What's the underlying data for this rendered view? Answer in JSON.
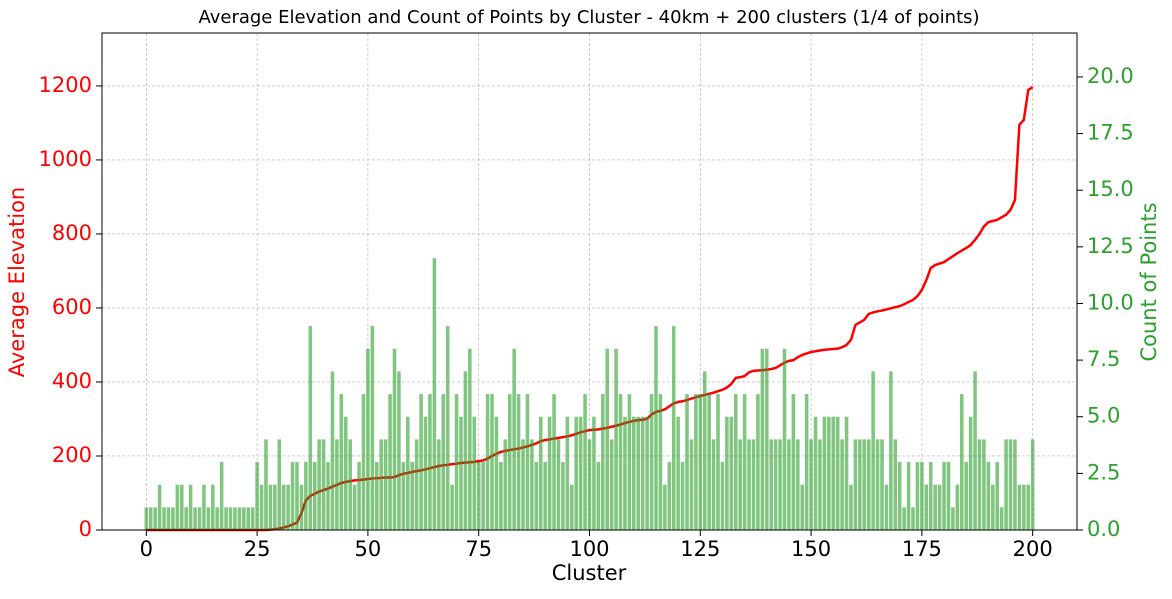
{
  "chart_data": {
    "type": "combo",
    "title": "Average Elevation and Count of Points by Cluster - 40km + 200 clusters (1/4 of points)",
    "xlabel": "Cluster",
    "ylabel": "Average Elevation",
    "y2label": "Count of Points",
    "ylabel_color": "#ff0000",
    "y2label_color": "#2ca02c",
    "grid": true,
    "xlim": [
      -10,
      210
    ],
    "xticks": [
      0,
      25,
      50,
      75,
      100,
      125,
      150,
      175,
      200
    ],
    "ylim": [
      0,
      1343
    ],
    "yticks": [
      0,
      200,
      400,
      600,
      800,
      1000,
      1200
    ],
    "y2lim": [
      0,
      21.94
    ],
    "y2ticks": [
      {
        "value": 0,
        "label": "0.0"
      },
      {
        "value": 2.5,
        "label": "2.5"
      },
      {
        "value": 5,
        "label": "5.0"
      },
      {
        "value": 7.5,
        "label": "7.5"
      },
      {
        "value": 10,
        "label": "10.0"
      },
      {
        "value": 12.5,
        "label": "12.5"
      },
      {
        "value": 15,
        "label": "15.0"
      },
      {
        "value": 17.5,
        "label": "17.5"
      },
      {
        "value": 20,
        "label": "20.0"
      }
    ],
    "x": [
      0,
      1,
      2,
      3,
      4,
      5,
      6,
      7,
      8,
      9,
      10,
      11,
      12,
      13,
      14,
      15,
      16,
      17,
      18,
      19,
      20,
      21,
      22,
      23,
      24,
      25,
      26,
      27,
      28,
      29,
      30,
      31,
      32,
      33,
      34,
      35,
      36,
      37,
      38,
      39,
      40,
      41,
      42,
      43,
      44,
      45,
      46,
      47,
      48,
      49,
      50,
      51,
      52,
      53,
      54,
      55,
      56,
      57,
      58,
      59,
      60,
      61,
      62,
      63,
      64,
      65,
      66,
      67,
      68,
      69,
      70,
      71,
      72,
      73,
      74,
      75,
      76,
      77,
      78,
      79,
      80,
      81,
      82,
      83,
      84,
      85,
      86,
      87,
      88,
      89,
      90,
      91,
      92,
      93,
      94,
      95,
      96,
      97,
      98,
      99,
      100,
      101,
      102,
      103,
      104,
      105,
      106,
      107,
      108,
      109,
      110,
      111,
      112,
      113,
      114,
      115,
      116,
      117,
      118,
      119,
      120,
      121,
      122,
      123,
      124,
      125,
      126,
      127,
      128,
      129,
      130,
      131,
      132,
      133,
      134,
      135,
      136,
      137,
      138,
      139,
      140,
      141,
      142,
      143,
      144,
      145,
      146,
      147,
      148,
      149,
      150,
      151,
      152,
      153,
      154,
      155,
      156,
      157,
      158,
      159,
      160,
      161,
      162,
      163,
      164,
      165,
      166,
      167,
      168,
      169,
      170,
      171,
      172,
      173,
      174,
      175,
      176,
      177,
      178,
      179,
      180,
      181,
      182,
      183,
      184,
      185,
      186,
      187,
      188,
      189,
      190,
      191,
      192,
      193,
      194,
      195,
      196,
      197,
      198,
      199,
      200
    ],
    "series": [
      {
        "type": "line",
        "color": "#ff0000",
        "values": [
          0,
          0,
          0,
          0,
          0,
          0,
          0,
          0,
          0,
          0,
          0,
          0,
          0,
          0,
          0,
          0,
          0,
          0,
          0,
          0,
          0,
          0,
          0,
          0,
          0,
          0,
          0,
          0,
          1,
          2,
          4,
          7,
          10,
          15,
          20,
          45,
          80,
          92,
          98,
          104,
          108,
          112,
          117,
          122,
          127,
          130,
          132,
          134,
          135,
          136,
          138,
          139,
          140,
          141,
          142,
          142,
          143,
          148,
          152,
          154,
          157,
          159,
          161,
          164,
          167,
          170,
          173,
          175,
          176,
          178,
          179,
          181,
          182,
          183,
          184,
          186,
          188,
          193,
          200,
          206,
          211,
          214,
          216,
          218,
          220,
          223,
          226,
          230,
          234,
          240,
          243,
          245,
          247,
          249,
          251,
          253,
          256,
          260,
          264,
          267,
          270,
          271,
          272,
          274,
          276,
          279,
          282,
          285,
          289,
          292,
          295,
          297,
          298,
          301,
          312,
          319,
          322,
          326,
          334,
          342,
          346,
          348,
          351,
          355,
          359,
          362,
          365,
          368,
          371,
          375,
          379,
          385,
          395,
          411,
          413,
          416,
          426,
          430,
          431,
          432,
          433,
          435,
          438,
          445,
          452,
          457,
          459,
          467,
          473,
          477,
          481,
          483,
          485,
          487,
          488,
          489,
          490,
          494,
          500,
          514,
          554,
          561,
          568,
          584,
          588,
          591,
          593,
          596,
          599,
          602,
          605,
          610,
          616,
          622,
          632,
          649,
          675,
          708,
          716,
          720,
          724,
          732,
          740,
          748,
          755,
          762,
          770,
          784,
          800,
          820,
          832,
          835,
          838,
          845,
          852,
          865,
          892,
          1095,
          1108,
          1189,
          1197
        ]
      },
      {
        "type": "bar",
        "axis": "y2",
        "color": "#2ca02c",
        "alpha": 0.6,
        "values": [
          1,
          1,
          1,
          2,
          1,
          1,
          1,
          2,
          2,
          1,
          2,
          1,
          1,
          2,
          1,
          2,
          1,
          3,
          1,
          1,
          1,
          1,
          1,
          1,
          1,
          3,
          2,
          4,
          2,
          2,
          4,
          2,
          2,
          3,
          3,
          2,
          3,
          9,
          3,
          4,
          4,
          3,
          7,
          4,
          6,
          5,
          4,
          2,
          3,
          6,
          8,
          9,
          3,
          4,
          4,
          6,
          8,
          7,
          3,
          5,
          3,
          4,
          6,
          5,
          6,
          12,
          4,
          6,
          9,
          2,
          6,
          5,
          7,
          8,
          5,
          3,
          3,
          6,
          6,
          5,
          3,
          4,
          6,
          8,
          6,
          4,
          6,
          4,
          3,
          5,
          3,
          5,
          6,
          4,
          3,
          5,
          2,
          5,
          5,
          6,
          4,
          5,
          3,
          6,
          8,
          4,
          8,
          6,
          5,
          6,
          5,
          5,
          5,
          5,
          6,
          9,
          6,
          2,
          3,
          9,
          5,
          3,
          6,
          4,
          6,
          6,
          7,
          6,
          4,
          6,
          3,
          5,
          5,
          6,
          4,
          6,
          4,
          4,
          6,
          8,
          8,
          4,
          4,
          4,
          8,
          4,
          6,
          4,
          2,
          6,
          4,
          5,
          4,
          5,
          5,
          5,
          5,
          4,
          5,
          2,
          4,
          4,
          4,
          4,
          7,
          4,
          4,
          2,
          7,
          4,
          3,
          1,
          3,
          1,
          3,
          3,
          2,
          3,
          2,
          2,
          3,
          3,
          1,
          2,
          6,
          3,
          5,
          7,
          4,
          4,
          3,
          2,
          3,
          1,
          4,
          4,
          4,
          2,
          2,
          2,
          4
        ]
      }
    ]
  }
}
